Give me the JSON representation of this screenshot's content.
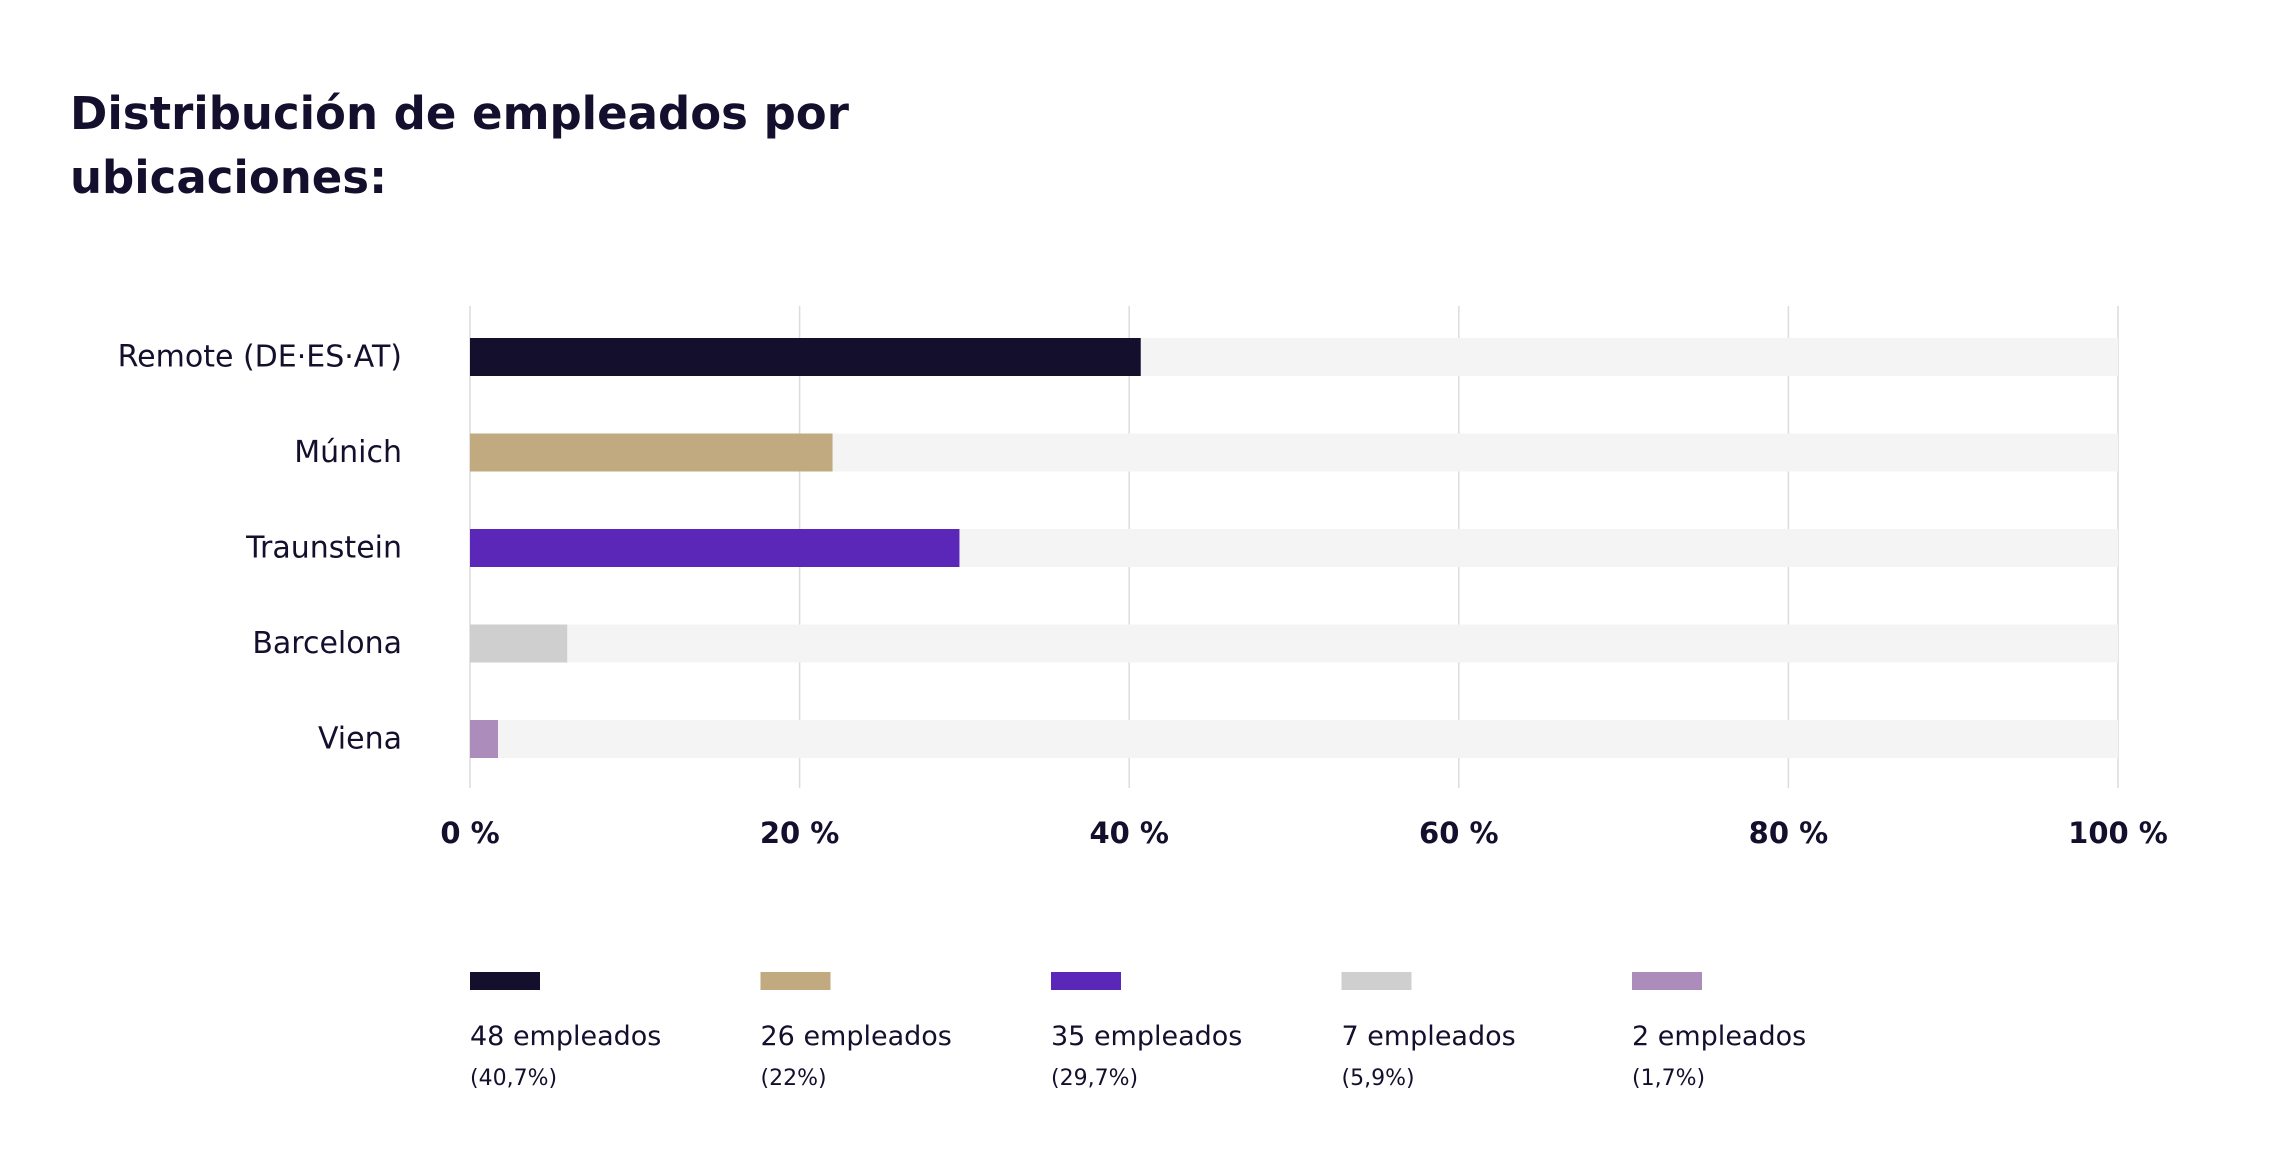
{
  "title": "Distribución de empleados por ubicaciones:",
  "chart_data": {
    "type": "bar",
    "orientation": "horizontal",
    "title": "Distribución de empleados por ubicaciones:",
    "xlabel": "",
    "ylabel": "",
    "categories": [
      "Remote (DE·ES·AT)",
      "Múnich",
      "Traunstein",
      "Barcelona",
      "Viena"
    ],
    "values": [
      40.7,
      22,
      29.7,
      5.9,
      1.7
    ],
    "counts": [
      48,
      26,
      35,
      7,
      2
    ],
    "colors": [
      "#140f2d",
      "#c2aa80",
      "#5b27b9",
      "#cfcfcf",
      "#ab8cba"
    ],
    "track_color": "#f4f4f4",
    "grid_color": "#dcdcdc",
    "xlim": [
      0,
      100
    ],
    "xticks": [
      0,
      20,
      40,
      60,
      80,
      100
    ],
    "xtick_labels": [
      "0 %",
      "20 %",
      "40 %",
      "60 %",
      "80 %",
      "100 %"
    ],
    "grid": true,
    "legend_position": "bottom",
    "legend": [
      {
        "label": "48 empleados",
        "sublabel": "(40,7%)",
        "color": "#140f2d"
      },
      {
        "label": "26 empleados",
        "sublabel": "(22%)",
        "color": "#c2aa80"
      },
      {
        "label": "35 empleados",
        "sublabel": "(29,7%)",
        "color": "#5b27b9"
      },
      {
        "label": "7 empleados",
        "sublabel": "(5,9%)",
        "color": "#cfcfcf"
      },
      {
        "label": "2 empleados",
        "sublabel": "(1,7%)",
        "color": "#ab8cba"
      }
    ]
  }
}
